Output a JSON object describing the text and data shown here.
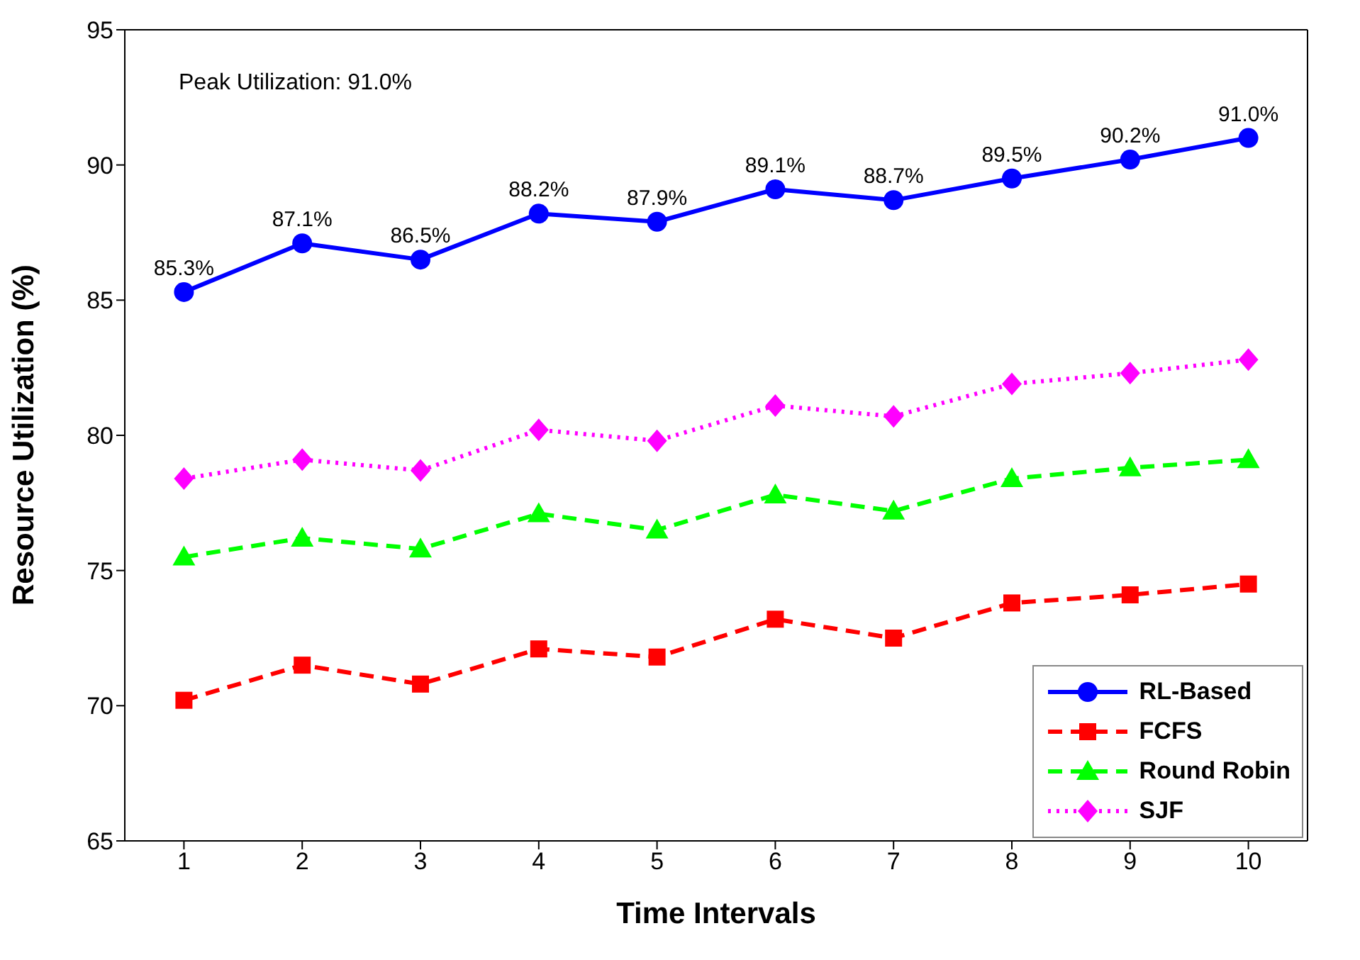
{
  "chart_data": {
    "type": "line",
    "xlabel": "Time Intervals",
    "ylabel": "Resource Utilization (%)",
    "x": [
      1,
      2,
      3,
      4,
      5,
      6,
      7,
      8,
      9,
      10
    ],
    "xlim": [
      0.5,
      10.5
    ],
    "xticks": [
      1,
      2,
      3,
      4,
      5,
      6,
      7,
      8,
      9,
      10
    ],
    "ylim": [
      65,
      95
    ],
    "yticks": [
      65,
      70,
      75,
      80,
      85,
      90,
      95
    ],
    "grid": false,
    "legend": "bottom right",
    "annotations": [
      "Peak Utilization: 91.0%"
    ],
    "series": [
      {
        "name": "RL-Based",
        "color": "#0000ff",
        "marker": "circle",
        "line_style": "solid",
        "values": [
          85.3,
          87.1,
          86.5,
          88.2,
          87.9,
          89.1,
          88.7,
          89.5,
          90.2,
          91.0
        ],
        "value_labels": [
          "85.3%",
          "87.1%",
          "86.5%",
          "88.2%",
          "87.9%",
          "89.1%",
          "88.7%",
          "89.5%",
          "90.2%",
          "91.0%"
        ]
      },
      {
        "name": "FCFS",
        "color": "#ff0000",
        "marker": "square",
        "line_style": "dashed",
        "values": [
          70.2,
          71.5,
          70.8,
          72.1,
          71.8,
          73.2,
          72.5,
          73.8,
          74.1,
          74.5
        ]
      },
      {
        "name": "Round Robin",
        "color": "#00ff00",
        "marker": "triangle",
        "line_style": "dashed",
        "values": [
          75.5,
          76.2,
          75.8,
          77.1,
          76.5,
          77.8,
          77.2,
          78.4,
          78.8,
          79.1
        ]
      },
      {
        "name": "SJF",
        "color": "#ff00ff",
        "marker": "diamond",
        "line_style": "dotted",
        "values": [
          78.4,
          79.1,
          78.7,
          80.2,
          79.8,
          81.1,
          80.7,
          81.9,
          82.3,
          82.8
        ]
      }
    ]
  }
}
